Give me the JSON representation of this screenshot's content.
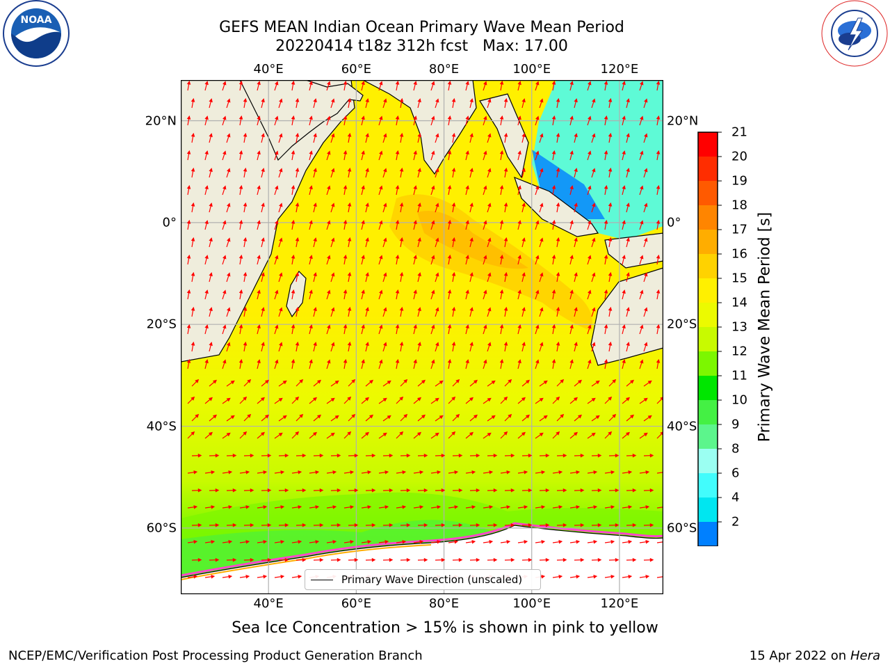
{
  "title": {
    "line1": "GEFS MEAN Indian Ocean Primary Wave Mean Period",
    "line2": "20220414 t18z 312h fcst   Max: 17.00"
  },
  "logos": {
    "left": "NOAA",
    "left_ring": "NATIONAL OCEANIC AND ATMOSPHERIC ADMINISTRATION · U.S. DEPARTMENT OF COMMERCE",
    "right": "NATIONAL WEATHER SERVICE"
  },
  "map": {
    "lon_ticks": [
      "40°E",
      "60°E",
      "80°E",
      "100°E",
      "120°E"
    ],
    "lat_ticks": [
      "20°N",
      "0°",
      "20°S",
      "40°S",
      "60°S"
    ],
    "lon_values": [
      40,
      60,
      80,
      100,
      120
    ],
    "lat_values": [
      20,
      0,
      -20,
      -40,
      -60
    ],
    "extent": {
      "lon_min": 20,
      "lon_max": 130,
      "lat_min": -73,
      "lat_max": 28
    },
    "grid": true,
    "colors": {
      "land": "#efeddc",
      "ice": "#ffffff",
      "arrows": "#ff0000",
      "coast": "#000000"
    }
  },
  "colorbar": {
    "label": "Primary Wave Mean Period [s]",
    "ticks": [
      "21",
      "20",
      "19",
      "18",
      "17",
      "16",
      "15",
      "14",
      "13",
      "12",
      "11",
      "10",
      "9",
      "8",
      "6",
      "4",
      "2"
    ],
    "bands": [
      {
        "color": "#ff0000"
      },
      {
        "color": "#ff2d00"
      },
      {
        "color": "#ff5a00"
      },
      {
        "color": "#ff8500"
      },
      {
        "color": "#ffad00"
      },
      {
        "color": "#ffd200"
      },
      {
        "color": "#fff000"
      },
      {
        "color": "#ecfa00"
      },
      {
        "color": "#c8fa00"
      },
      {
        "color": "#7cf700"
      },
      {
        "color": "#00e600"
      },
      {
        "color": "#44f044"
      },
      {
        "color": "#5cf58c"
      },
      {
        "color": "#9bfff2"
      },
      {
        "color": "#42fcfc"
      },
      {
        "color": "#00e6f0"
      },
      {
        "color": "#0080ff"
      }
    ],
    "extend_color": "#0000ff"
  },
  "legend": {
    "label": "Primary Wave Direction (unscaled)"
  },
  "note": "Sea Ice Concentration > 15% is shown in pink to yellow",
  "footer": {
    "left": "NCEP/EMC/Verification Post Processing Product Generation Branch",
    "date": "15 Apr 2022 on ",
    "machine": "Hera"
  }
}
